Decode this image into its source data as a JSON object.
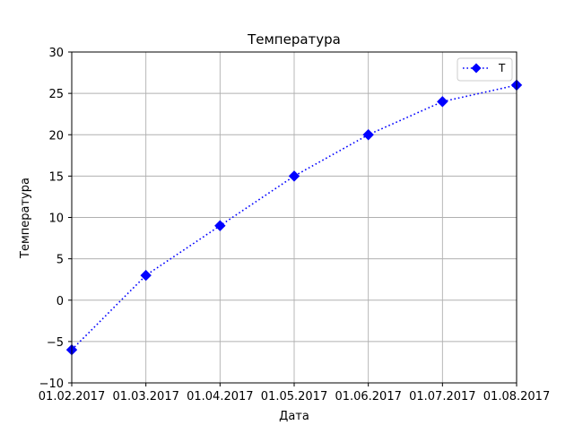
{
  "chart_data": {
    "type": "line",
    "title": "Температура",
    "xlabel": "Дата",
    "ylabel": "Температура",
    "x_ticks": [
      "01.02.2017",
      "01.03.2017",
      "01.04.2017",
      "01.05.2017",
      "01.06.2017",
      "01.07.2017",
      "01.08.2017"
    ],
    "y_ticks": [
      30,
      25,
      20,
      15,
      10,
      5,
      0,
      -5,
      -10
    ],
    "y_tick_labels": [
      "30",
      "25",
      "20",
      "15",
      "10",
      "5",
      "0",
      "−5",
      "−10"
    ],
    "ylim": [
      -10,
      30
    ],
    "grid": true,
    "legend_position": "top-right",
    "series": [
      {
        "name": "T",
        "color": "#0000ff",
        "marker": "diamond",
        "line_style": "dotted",
        "x": [
          "01.02.2017",
          "01.03.2017",
          "01.04.2017",
          "01.05.2017",
          "01.06.2017",
          "01.07.2017",
          "01.08.2017"
        ],
        "values": [
          -6,
          3,
          9,
          15,
          20,
          24,
          26
        ]
      }
    ]
  }
}
